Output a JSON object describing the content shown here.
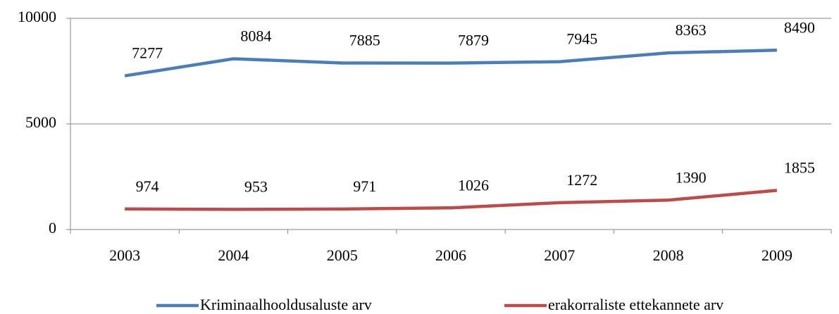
{
  "chart_data": {
    "type": "line",
    "categories": [
      "2003",
      "2004",
      "2005",
      "2006",
      "2007",
      "2008",
      "2009"
    ],
    "series": [
      {
        "name": "Kriminaalhooldusaluste arv",
        "color": "#4a7ebb",
        "values": [
          7277,
          8084,
          7885,
          7879,
          7945,
          8363,
          8490
        ]
      },
      {
        "name": "erakorraliste ettekannete arv",
        "color": "#be4b48",
        "values": [
          974,
          953,
          971,
          1026,
          1272,
          1390,
          1855
        ]
      }
    ],
    "ylim": [
      0,
      10000
    ],
    "yticks": [
      0,
      5000,
      10000
    ],
    "grid": true,
    "legend": "bottom"
  }
}
